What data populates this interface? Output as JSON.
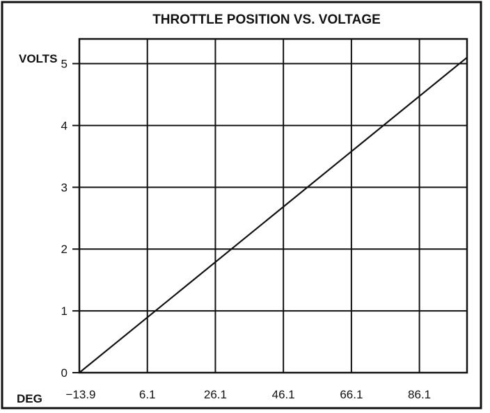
{
  "chart_data": {
    "type": "line",
    "title": "THROTTLE POSITION VS. VOLTAGE",
    "xlabel": "DEG",
    "ylabel": "VOLTS",
    "x_ticks": [
      "−13.9",
      "6.1",
      "26.1",
      "46.1",
      "66.1",
      "86.1"
    ],
    "x_tick_values": [
      -13.9,
      6.1,
      26.1,
      46.1,
      66.1,
      86.1
    ],
    "y_ticks": [
      "0",
      "1",
      "2",
      "3",
      "4",
      "5"
    ],
    "y_tick_values": [
      0,
      1,
      2,
      3,
      4,
      5
    ],
    "xlim": [
      -13.9,
      100.1
    ],
    "ylim": [
      0,
      5.4
    ],
    "grid": true,
    "series": [
      {
        "x": [
          -13.9,
          100.1
        ],
        "y": [
          0,
          5.1
        ]
      }
    ],
    "colors": {
      "line": "#111111",
      "grid": "#111111",
      "background": "#ffffff"
    }
  }
}
